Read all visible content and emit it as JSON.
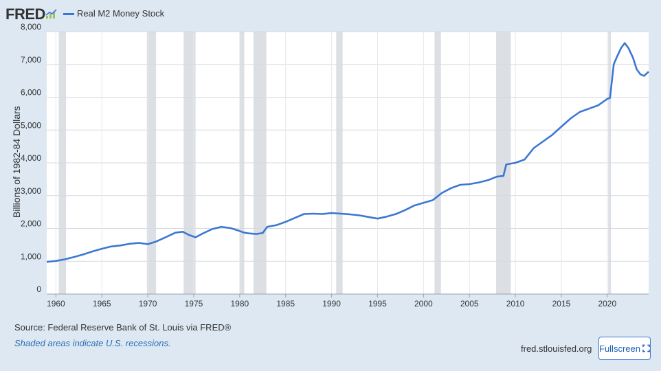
{
  "header": {
    "logo_text": "FRED",
    "logo_icon": "fred-chart-icon",
    "series_color": "#3c77d1"
  },
  "footer": {
    "source": "Source: Federal Reserve Bank of St. Louis via FRED®",
    "note": "Shaded areas indicate U.S. recessions.",
    "site": "fred.stlouisfed.org",
    "fullscreen_label": "Fullscreen",
    "fullscreen_icon": "expand-icon"
  },
  "chart_data": {
    "type": "line",
    "title": "",
    "xlabel": "",
    "ylabel": "Billions of 1982-84 Dollars",
    "xlim": [
      1959,
      2024.5
    ],
    "ylim": [
      0,
      8000
    ],
    "grid": true,
    "legend_placement": "top-left",
    "x_ticks": [
      1960,
      1965,
      1970,
      1975,
      1980,
      1985,
      1990,
      1995,
      2000,
      2005,
      2010,
      2015,
      2020
    ],
    "x_tick_labels": [
      "1960",
      "1965",
      "1970",
      "1975",
      "1980",
      "1985",
      "1990",
      "1995",
      "2000",
      "2005",
      "2010",
      "2015",
      "2020"
    ],
    "y_ticks": [
      0,
      1000,
      2000,
      3000,
      4000,
      5000,
      6000,
      7000,
      8000
    ],
    "y_tick_labels": [
      "0",
      "1,000",
      "2,000",
      "3,000",
      "4,000",
      "5,000",
      "6,000",
      "7,000",
      "8,000"
    ],
    "recessions": [
      [
        1960.3,
        1961.1
      ],
      [
        1969.9,
        1970.9
      ],
      [
        1973.9,
        1975.2
      ],
      [
        1980.0,
        1980.5
      ],
      [
        1981.5,
        1982.9
      ],
      [
        1990.5,
        1991.2
      ],
      [
        2001.2,
        2001.9
      ],
      [
        2007.9,
        2009.5
      ],
      [
        2020.1,
        2020.4
      ]
    ],
    "series": [
      {
        "name": "Real M2 Money Stock",
        "color": "#3c77d1",
        "x": [
          1959,
          1960,
          1961,
          1962,
          1963,
          1964,
          1965,
          1966,
          1967,
          1968,
          1969,
          1970,
          1970.9,
          1972,
          1973,
          1973.8,
          1974.5,
          1975.2,
          1976,
          1977,
          1978,
          1979,
          1980,
          1980.5,
          1981,
          1981.8,
          1982.5,
          1983,
          1984,
          1985,
          1986,
          1987,
          1988,
          1989,
          1990,
          1991,
          1992,
          1993,
          1994,
          1995,
          1996,
          1997,
          1998,
          1999,
          2000,
          2001,
          2002,
          2003,
          2004,
          2005,
          2006,
          2007,
          2008,
          2008.7,
          2009,
          2010,
          2011,
          2012,
          2013,
          2014,
          2015,
          2016,
          2017,
          2018,
          2019,
          2020,
          2020.3,
          2020.7,
          2021,
          2021.5,
          2021.9,
          2022.3,
          2022.8,
          2023.2,
          2023.6,
          2024,
          2024.5
        ],
        "y": [
          980,
          1010,
          1060,
          1130,
          1210,
          1300,
          1380,
          1450,
          1480,
          1530,
          1560,
          1520,
          1600,
          1740,
          1870,
          1900,
          1800,
          1730,
          1850,
          1980,
          2050,
          2010,
          1920,
          1870,
          1850,
          1830,
          1860,
          2050,
          2100,
          2200,
          2320,
          2440,
          2450,
          2440,
          2470,
          2450,
          2430,
          2400,
          2350,
          2300,
          2360,
          2440,
          2560,
          2700,
          2780,
          2860,
          3080,
          3230,
          3330,
          3350,
          3400,
          3470,
          3580,
          3600,
          3950,
          4000,
          4100,
          4450,
          4650,
          4850,
          5100,
          5350,
          5550,
          5650,
          5750,
          5950,
          5980,
          7000,
          7200,
          7500,
          7650,
          7500,
          7200,
          6850,
          6700,
          6650,
          6780
        ]
      }
    ]
  }
}
